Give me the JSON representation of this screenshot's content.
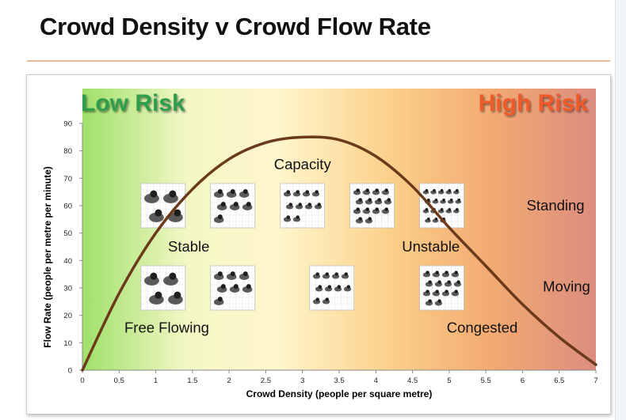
{
  "title": "Crowd Density v Crowd Flow Rate",
  "risk_labels": {
    "low": "Low Risk",
    "high": "High Risk"
  },
  "colors": {
    "low_risk": "#2e9e4b",
    "high_risk": "#ef5a2a",
    "curve": "#6b3a1a",
    "gradient_stops": [
      "#9fe06a",
      "#f2f7c4",
      "#fff6cc",
      "#fbd08a",
      "#f2a972",
      "#dc8d7f"
    ]
  },
  "chart_data": {
    "type": "line",
    "xlabel": "Crowd Density (people per square metre)",
    "ylabel": "Flow Rate (people per metre per minute)",
    "xlim": [
      0,
      7
    ],
    "ylim": [
      0,
      90
    ],
    "x_ticks": [
      "0",
      "0.5",
      "1",
      "1.5",
      "2",
      "2.5",
      "3",
      "3.5",
      "4",
      "4.5",
      "5",
      "5.5",
      "6",
      "6.5",
      "7"
    ],
    "y_ticks": [
      "0",
      "10",
      "20",
      "30",
      "40",
      "50",
      "60",
      "70",
      "80",
      "90"
    ],
    "grid": false,
    "series": [
      {
        "x": [
          0,
          0.5,
          1,
          1.5,
          2,
          2.5,
          3,
          3.5,
          4,
          4.5,
          5,
          5.5,
          6,
          6.5,
          7
        ],
        "y": [
          0,
          28,
          50,
          66,
          77,
          83,
          85,
          84,
          78,
          67,
          52,
          38,
          24,
          12,
          2
        ]
      }
    ],
    "annotations": [
      {
        "text": "Capacity",
        "x": 3.0,
        "y": 75
      },
      {
        "text": "Stable",
        "x": 1.45,
        "y": 45
      },
      {
        "text": "Unstable",
        "x": 4.75,
        "y": 45
      },
      {
        "text": "Free Flowing",
        "x": 1.15,
        "y": 15.5
      },
      {
        "text": "Congested",
        "x": 5.45,
        "y": 15.5
      },
      {
        "text": "Standing",
        "x": 6.45,
        "y": 60
      },
      {
        "text": "Moving",
        "x": 6.6,
        "y": 30.5
      }
    ]
  },
  "illustrations": [
    {
      "name": "standing-density-1-illustration",
      "x": 1.1,
      "y": 60,
      "people": 4
    },
    {
      "name": "standing-density-2-illustration",
      "x": 2.05,
      "y": 60,
      "people": 7
    },
    {
      "name": "standing-density-3-illustration",
      "x": 3.0,
      "y": 60,
      "people": 10
    },
    {
      "name": "standing-density-4-illustration",
      "x": 3.95,
      "y": 60,
      "people": 14
    },
    {
      "name": "standing-density-5-illustration",
      "x": 4.9,
      "y": 60,
      "people": 18
    },
    {
      "name": "moving-density-1-illustration",
      "x": 1.1,
      "y": 30,
      "people": 4
    },
    {
      "name": "moving-density-2-illustration",
      "x": 2.05,
      "y": 30,
      "people": 7
    },
    {
      "name": "moving-density-3-illustration",
      "x": 3.4,
      "y": 30,
      "people": 10
    },
    {
      "name": "moving-density-4-illustration",
      "x": 4.9,
      "y": 30,
      "people": 14
    }
  ]
}
